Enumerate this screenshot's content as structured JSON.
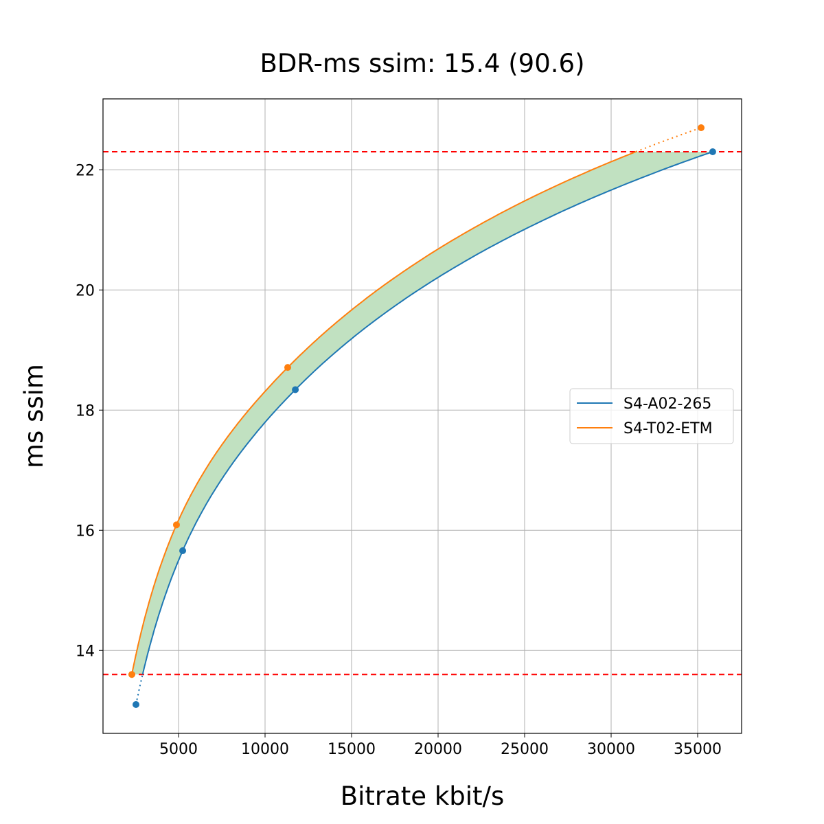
{
  "chart_data": {
    "type": "line",
    "title": "BDR-ms ssim: 15.4 (90.6)",
    "xlabel": "Bitrate kbit/s",
    "ylabel": "ms ssim",
    "xlim": [
      635,
      37540
    ],
    "ylim": [
      12.62,
      23.18
    ],
    "xticks": [
      5000,
      10000,
      15000,
      20000,
      25000,
      30000,
      35000
    ],
    "yticks": [
      14,
      16,
      18,
      20,
      22
    ],
    "grid": true,
    "legend_position": "center-right",
    "reference_lines": [
      22.3,
      13.6
    ],
    "reference_line_color": "#ff0000",
    "fill_color": "#c1e1c1",
    "series": [
      {
        "name": "S4-A02-265",
        "color": "#1f77b4",
        "x": [
          2540,
          5240,
          11750,
          35870
        ],
        "y": [
          13.1,
          15.66,
          18.34,
          22.3
        ]
      },
      {
        "name": "S4-T02-ETM",
        "color": "#ff7f0e",
        "x": [
          2300,
          4880,
          11310,
          35200
        ],
        "y": [
          13.6,
          16.09,
          18.71,
          22.7
        ]
      }
    ]
  }
}
